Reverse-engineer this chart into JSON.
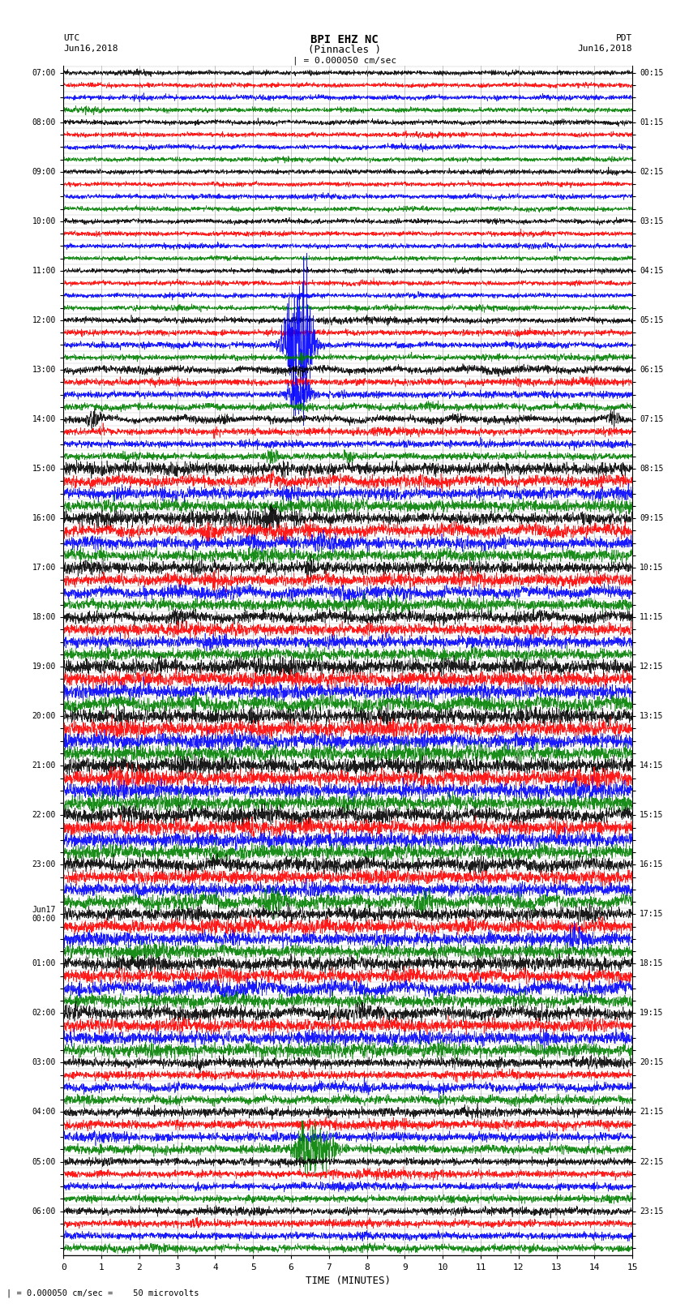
{
  "title_line1": "BPI EHZ NC",
  "title_line2": "(Pinnacles )",
  "scale_text": "| = 0.000050 cm/sec",
  "bottom_label": "TIME (MINUTES)",
  "bottom_note": "= 0.000050 cm/sec =    50 microvolts",
  "x_ticks": [
    0,
    1,
    2,
    3,
    4,
    5,
    6,
    7,
    8,
    9,
    10,
    11,
    12,
    13,
    14,
    15
  ],
  "colors_cycle": [
    "black",
    "red",
    "blue",
    "green"
  ],
  "fig_width": 8.5,
  "fig_height": 16.13,
  "bg_color": "#ffffff",
  "grid_color": "#999999",
  "left_labels_utc": [
    "07:00",
    "",
    "",
    "",
    "08:00",
    "",
    "",
    "",
    "09:00",
    "",
    "",
    "",
    "10:00",
    "",
    "",
    "",
    "11:00",
    "",
    "",
    "",
    "12:00",
    "",
    "",
    "",
    "13:00",
    "",
    "",
    "",
    "14:00",
    "",
    "",
    "",
    "15:00",
    "",
    "",
    "",
    "16:00",
    "",
    "",
    "",
    "17:00",
    "",
    "",
    "",
    "18:00",
    "",
    "",
    "",
    "19:00",
    "",
    "",
    "",
    "20:00",
    "",
    "",
    "",
    "21:00",
    "",
    "",
    "",
    "22:00",
    "",
    "",
    "",
    "23:00",
    "",
    "",
    "",
    "Jun17\n00:00",
    "",
    "",
    "",
    "01:00",
    "",
    "",
    "",
    "02:00",
    "",
    "",
    "",
    "03:00",
    "",
    "",
    "",
    "04:00",
    "",
    "",
    "",
    "05:00",
    "",
    "",
    "",
    "06:00",
    "",
    "",
    ""
  ],
  "right_labels_pdt": [
    "00:15",
    "",
    "",
    "",
    "01:15",
    "",
    "",
    "",
    "02:15",
    "",
    "",
    "",
    "03:15",
    "",
    "",
    "",
    "04:15",
    "",
    "",
    "",
    "05:15",
    "",
    "",
    "",
    "06:15",
    "",
    "",
    "",
    "07:15",
    "",
    "",
    "",
    "08:15",
    "",
    "",
    "",
    "09:15",
    "",
    "",
    "",
    "10:15",
    "",
    "",
    "",
    "11:15",
    "",
    "",
    "",
    "12:15",
    "",
    "",
    "",
    "13:15",
    "",
    "",
    "",
    "14:15",
    "",
    "",
    "",
    "15:15",
    "",
    "",
    "",
    "16:15",
    "",
    "",
    "",
    "17:15",
    "",
    "",
    "",
    "18:15",
    "",
    "",
    "",
    "19:15",
    "",
    "",
    "",
    "20:15",
    "",
    "",
    "",
    "21:15",
    "",
    "",
    "",
    "22:15",
    "",
    "",
    "",
    "23:15",
    "",
    "",
    ""
  ]
}
